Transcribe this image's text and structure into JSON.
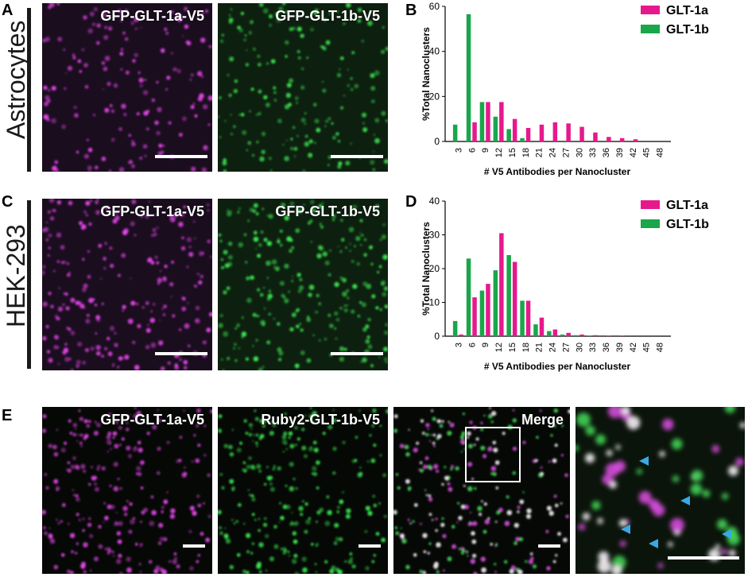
{
  "panels": {
    "A": {
      "letter": "A",
      "row_label": "Astrocytes",
      "images": [
        "GFP-GLT-1a-V5",
        "GFP-GLT-1b-V5"
      ]
    },
    "B": {
      "letter": "B"
    },
    "C": {
      "letter": "C",
      "row_label": "HEK-293",
      "images": [
        "GFP-GLT-1a-V5",
        "GFP-GLT-1b-V5"
      ]
    },
    "D": {
      "letter": "D"
    },
    "E": {
      "letter": "E",
      "images": [
        "GFP-GLT-1a-V5",
        "Ruby2-GLT-1b-V5",
        "Merge",
        ""
      ]
    }
  },
  "colors": {
    "glt1a": "#e6198c",
    "glt1b": "#1aa64b",
    "magenta_signal": "#e040e8",
    "green_signal": "#36e04a",
    "arrow": "#3aa8e6"
  },
  "chart_data": [
    {
      "type": "bar",
      "panel": "B",
      "categories": [
        "3",
        "6",
        "9",
        "12",
        "15",
        "18",
        "21",
        "24",
        "27",
        "30",
        "33",
        "36",
        "39",
        "42",
        "45",
        "48"
      ],
      "series": [
        {
          "name": "GLT-1a",
          "values": [
            0,
            8.5,
            17.5,
            17.5,
            10,
            6,
            7.5,
            8.5,
            8,
            6.5,
            4,
            2,
            1.5,
            1,
            0,
            0
          ]
        },
        {
          "name": "GLT-1b",
          "values": [
            7.5,
            56.5,
            17.5,
            11,
            5.5,
            1.5,
            0,
            0,
            0,
            0,
            0,
            0,
            0,
            0,
            0,
            0
          ]
        }
      ],
      "xlabel": "# V5 Antibodies per Nanocluster",
      "ylabel": "%Total Nanoclusters",
      "ylim": [
        0,
        60
      ],
      "yticks": [
        "0",
        "20",
        "40",
        "60"
      ],
      "legend": "top-right"
    },
    {
      "type": "bar",
      "panel": "D",
      "categories": [
        "3",
        "6",
        "9",
        "12",
        "15",
        "18",
        "21",
        "24",
        "27",
        "30",
        "33",
        "36",
        "39",
        "42",
        "45",
        "48"
      ],
      "series": [
        {
          "name": "GLT-1a",
          "values": [
            0.5,
            11.5,
            15.5,
            30.5,
            22,
            10.5,
            5.5,
            2,
            1,
            0.5,
            0.3,
            0.2,
            0.2,
            0,
            0,
            0
          ]
        },
        {
          "name": "GLT-1b",
          "values": [
            4.5,
            23,
            13.5,
            19.5,
            24,
            10.5,
            3.5,
            1.5,
            0.5,
            0.3,
            0.2,
            0,
            0,
            0,
            0,
            0
          ]
        }
      ],
      "xlabel": "# V5 Antibodies per Nanocluster",
      "ylabel": "%Total Nanoclusters",
      "ylim": [
        0,
        40
      ],
      "yticks": [
        "0",
        "10",
        "20",
        "30",
        "40"
      ],
      "legend": "top-right"
    }
  ]
}
